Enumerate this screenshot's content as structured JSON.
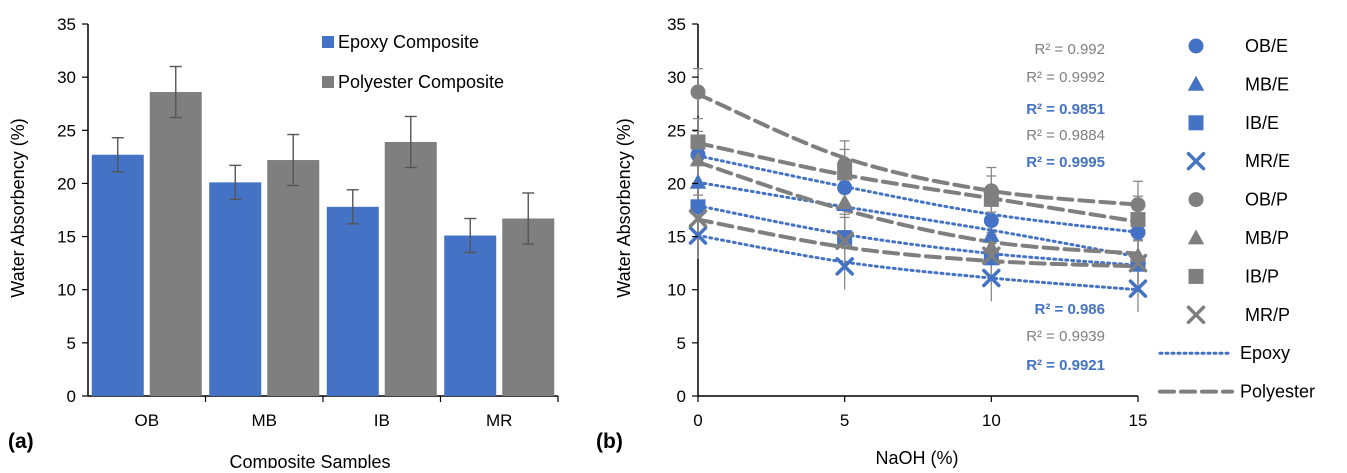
{
  "chart_data": [
    {
      "type": "bar",
      "panel_label": "(a)",
      "categories": [
        "OB",
        "MB",
        "IB",
        "MR"
      ],
      "xlabel": "Composite Samples",
      "ylabel": "Water Absorbency (%)",
      "ylim": [
        0,
        35
      ],
      "yticks": [
        0,
        5,
        10,
        15,
        20,
        25,
        30,
        35
      ],
      "legend_position": "top-right",
      "grid": false,
      "series": [
        {
          "name": "Epoxy Composite",
          "color": "#4472c4",
          "values": [
            22.7,
            20.1,
            17.8,
            15.1
          ],
          "errors": [
            1.6,
            1.6,
            1.6,
            1.6
          ]
        },
        {
          "name": "Polyester Composite",
          "color": "#7f7f7f",
          "values": [
            28.6,
            22.2,
            23.9,
            16.7
          ],
          "errors": [
            2.4,
            2.4,
            2.4,
            2.4
          ]
        }
      ]
    },
    {
      "type": "scatter",
      "panel_label": "(b)",
      "xlabel": "NaOH (%)",
      "ylabel": "Water Absorbency (%)",
      "xlim": [
        0,
        15
      ],
      "ylim": [
        0,
        35
      ],
      "xticks": [
        0,
        5,
        10,
        15
      ],
      "yticks": [
        0,
        5,
        10,
        15,
        20,
        25,
        30,
        35
      ],
      "legend_position": "right",
      "grid": false,
      "x": [
        0,
        5,
        10,
        15
      ],
      "series": [
        {
          "name": "OB/E",
          "marker": "circle",
          "color": "#4472c4",
          "values": [
            22.7,
            19.6,
            16.5,
            15.4
          ]
        },
        {
          "name": "MB/E",
          "marker": "triangle",
          "color": "#4472c4",
          "values": [
            20.1,
            18.0,
            15.1,
            13.0
          ]
        },
        {
          "name": "IB/E",
          "marker": "square",
          "color": "#4472c4",
          "values": [
            17.8,
            14.9,
            13.0,
            12.4
          ]
        },
        {
          "name": "MR/E",
          "marker": "x",
          "color": "#4472c4",
          "values": [
            15.1,
            12.2,
            11.1,
            10.1
          ]
        },
        {
          "name": "OB/P",
          "marker": "circle",
          "color": "#7f7f7f",
          "values": [
            28.6,
            21.8,
            19.3,
            18.0
          ]
        },
        {
          "name": "MB/P",
          "marker": "triangle",
          "color": "#7f7f7f",
          "values": [
            22.2,
            18.2,
            14.0,
            13.2
          ]
        },
        {
          "name": "IB/P",
          "marker": "square",
          "color": "#7f7f7f",
          "values": [
            23.9,
            21.0,
            18.5,
            16.6
          ]
        },
        {
          "name": "MR/P",
          "marker": "x",
          "color": "#7f7f7f",
          "values": [
            16.7,
            14.6,
            13.2,
            12.5
          ]
        }
      ],
      "trendlines": [
        {
          "name": "Epoxy",
          "style": "dotted",
          "color": "#4472c4",
          "values": [
            22.6,
            19.7,
            17.1,
            15.4
          ]
        },
        {
          "name": "Epoxy",
          "style": "dotted",
          "color": "#4472c4",
          "values": [
            20.1,
            17.8,
            15.6,
            13.1
          ]
        },
        {
          "name": "Epoxy",
          "style": "dotted",
          "color": "#4472c4",
          "values": [
            17.9,
            15.2,
            13.4,
            12.3
          ]
        },
        {
          "name": "Epoxy",
          "style": "dotted",
          "color": "#4472c4",
          "values": [
            15.1,
            12.6,
            11.1,
            10.0
          ]
        },
        {
          "name": "Polyester",
          "style": "dashed",
          "color": "#7f7f7f",
          "values": [
            28.4,
            22.4,
            19.3,
            18.0
          ]
        },
        {
          "name": "Polyester",
          "style": "dashed",
          "color": "#7f7f7f",
          "values": [
            23.8,
            20.8,
            18.6,
            16.4
          ]
        },
        {
          "name": "Polyester",
          "style": "dashed",
          "color": "#7f7f7f",
          "values": [
            22.0,
            17.5,
            14.5,
            13.4
          ]
        },
        {
          "name": "Polyester",
          "style": "dashed",
          "color": "#7f7f7f",
          "values": [
            16.6,
            14.0,
            12.7,
            12.2
          ]
        }
      ],
      "annotations": [
        {
          "text": "R² = 0.992",
          "color": "#7f7f7f",
          "bold": false
        },
        {
          "text": "R² = 0.9992",
          "color": "#7f7f7f",
          "bold": false
        },
        {
          "text": "R² = 0.9851",
          "color": "#4472c4",
          "bold": true
        },
        {
          "text": "R² = 0.9884",
          "color": "#7f7f7f",
          "bold": false
        },
        {
          "text": "R² = 0.9995",
          "color": "#4472c4",
          "bold": true
        },
        {
          "text": "R² = 0.986",
          "color": "#4472c4",
          "bold": true
        },
        {
          "text": "R² = 0.9939",
          "color": "#7f7f7f",
          "bold": false
        },
        {
          "text": "R² = 0.9921",
          "color": "#4472c4",
          "bold": true
        }
      ],
      "trend_legend": [
        {
          "name": "Epoxy",
          "style": "dotted",
          "color": "#4472c4"
        },
        {
          "name": "Polyester",
          "style": "dashed",
          "color": "#7f7f7f"
        }
      ]
    }
  ]
}
